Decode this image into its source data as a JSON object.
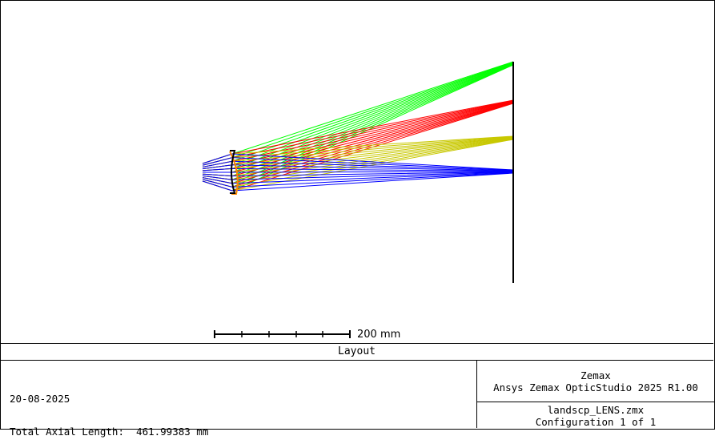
{
  "layout": {
    "scale_label": "200 mm",
    "title": "Layout",
    "date": "20-08-2025",
    "axial_length": "Total Axial Length:  461.99383 mm",
    "vendor": "Zemax",
    "software": "Ansys Zemax OpticStudio 2025 R1.00",
    "file": "landscp_LENS.zmx",
    "configuration": "Configuration 1 of 1"
  },
  "colors": {
    "field_1": "#0000ff",
    "field_2": "#c8c800",
    "field_3": "#ff0000",
    "field_4": "#00ff00",
    "lens_front": "#000000",
    "lens_back": "#ff8800"
  }
}
